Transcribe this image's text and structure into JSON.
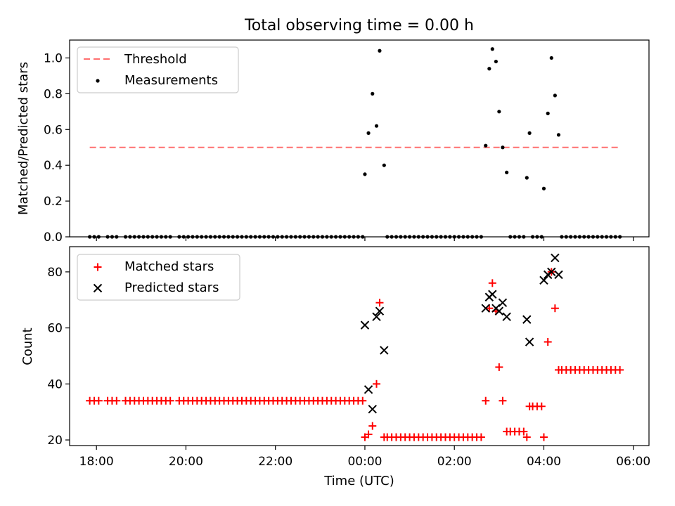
{
  "title": "Total observing time = 0.00 h",
  "colors": {
    "threshold": "#ff7070",
    "measurements": "#000000",
    "matched": "#ff0000",
    "predicted": "#000000"
  },
  "chart_data": [
    {
      "type": "scatter",
      "panel": "top",
      "xlabel": "",
      "ylabel": "Matched/Predicted stars",
      "xlim": [
        -6.6,
        6.35
      ],
      "ylim": [
        0,
        1.1
      ],
      "yticks": [
        0.0,
        0.2,
        0.4,
        0.6,
        0.8,
        1.0
      ],
      "ytick_labels": [
        "0.0",
        "0.2",
        "0.4",
        "0.6",
        "0.8",
        "1.0"
      ],
      "legend_position": "top-left",
      "legend": [
        "Threshold",
        "Measurements"
      ],
      "threshold": {
        "name": "Threshold",
        "value": 0.5,
        "x_range": [
          -6.15,
          5.7
        ]
      },
      "series": [
        {
          "name": "Measurements",
          "marker": "dot",
          "points": [
            [
              -6.15,
              0
            ],
            [
              -6.05,
              0
            ],
            [
              -5.95,
              0
            ],
            [
              -5.75,
              0
            ],
            [
              -5.65,
              0
            ],
            [
              -5.55,
              0
            ],
            [
              -5.35,
              0
            ],
            [
              -5.25,
              0
            ],
            [
              -5.15,
              0
            ],
            [
              -5.05,
              0
            ],
            [
              -4.95,
              0
            ],
            [
              -4.85,
              0
            ],
            [
              -4.75,
              0
            ],
            [
              -4.65,
              0
            ],
            [
              -4.55,
              0
            ],
            [
              -4.45,
              0
            ],
            [
              -4.35,
              0
            ],
            [
              -4.15,
              0
            ],
            [
              -4.05,
              0
            ],
            [
              -3.95,
              0
            ],
            [
              -3.85,
              0
            ],
            [
              -3.75,
              0
            ],
            [
              -3.65,
              0
            ],
            [
              -3.55,
              0
            ],
            [
              -3.45,
              0
            ],
            [
              -3.35,
              0
            ],
            [
              -3.25,
              0
            ],
            [
              -3.15,
              0
            ],
            [
              -3.05,
              0
            ],
            [
              -2.95,
              0
            ],
            [
              -2.85,
              0
            ],
            [
              -2.75,
              0
            ],
            [
              -2.65,
              0
            ],
            [
              -2.55,
              0
            ],
            [
              -2.45,
              0
            ],
            [
              -2.35,
              0
            ],
            [
              -2.25,
              0
            ],
            [
              -2.15,
              0
            ],
            [
              -2.05,
              0
            ],
            [
              -1.95,
              0
            ],
            [
              -1.85,
              0
            ],
            [
              -1.75,
              0
            ],
            [
              -1.65,
              0
            ],
            [
              -1.55,
              0
            ],
            [
              -1.45,
              0
            ],
            [
              -1.35,
              0
            ],
            [
              -1.25,
              0
            ],
            [
              -1.15,
              0
            ],
            [
              -1.05,
              0
            ],
            [
              -0.95,
              0
            ],
            [
              -0.85,
              0
            ],
            [
              -0.75,
              0
            ],
            [
              -0.65,
              0
            ],
            [
              -0.55,
              0
            ],
            [
              -0.45,
              0
            ],
            [
              -0.35,
              0
            ],
            [
              -0.25,
              0
            ],
            [
              -0.15,
              0
            ],
            [
              -0.05,
              0
            ],
            [
              0.0,
              0.35
            ],
            [
              0.08,
              0.58
            ],
            [
              0.17,
              0.8
            ],
            [
              0.26,
              0.62
            ],
            [
              0.33,
              1.04
            ],
            [
              0.43,
              0.4
            ],
            [
              0.5,
              0
            ],
            [
              0.6,
              0
            ],
            [
              0.7,
              0
            ],
            [
              0.8,
              0
            ],
            [
              0.9,
              0
            ],
            [
              1.0,
              0
            ],
            [
              1.1,
              0
            ],
            [
              1.2,
              0
            ],
            [
              1.3,
              0
            ],
            [
              1.4,
              0
            ],
            [
              1.5,
              0
            ],
            [
              1.6,
              0
            ],
            [
              1.7,
              0
            ],
            [
              1.8,
              0
            ],
            [
              1.9,
              0
            ],
            [
              2.0,
              0
            ],
            [
              2.1,
              0
            ],
            [
              2.2,
              0
            ],
            [
              2.3,
              0
            ],
            [
              2.4,
              0
            ],
            [
              2.5,
              0
            ],
            [
              2.6,
              0
            ],
            [
              2.7,
              0.51
            ],
            [
              2.78,
              0.94
            ],
            [
              2.85,
              1.05
            ],
            [
              2.93,
              0.98
            ],
            [
              3.0,
              0.7
            ],
            [
              3.08,
              0.5
            ],
            [
              3.17,
              0.36
            ],
            [
              3.25,
              0
            ],
            [
              3.35,
              0
            ],
            [
              3.45,
              0
            ],
            [
              3.55,
              0
            ],
            [
              3.62,
              0.33
            ],
            [
              3.68,
              0.58
            ],
            [
              3.75,
              0
            ],
            [
              3.85,
              0
            ],
            [
              3.95,
              0
            ],
            [
              4.0,
              0.27
            ],
            [
              4.09,
              0.69
            ],
            [
              4.17,
              1.0
            ],
            [
              4.25,
              0.79
            ],
            [
              4.33,
              0.57
            ],
            [
              4.4,
              0
            ],
            [
              4.5,
              0
            ],
            [
              4.6,
              0
            ],
            [
              4.7,
              0
            ],
            [
              4.8,
              0
            ],
            [
              4.9,
              0
            ],
            [
              5.0,
              0
            ],
            [
              5.1,
              0
            ],
            [
              5.2,
              0
            ],
            [
              5.3,
              0
            ],
            [
              5.4,
              0
            ],
            [
              5.5,
              0
            ],
            [
              5.6,
              0
            ],
            [
              5.7,
              0
            ]
          ]
        }
      ]
    },
    {
      "type": "scatter",
      "panel": "bottom",
      "xlabel": "Time (UTC)",
      "ylabel": "Count",
      "xlim": [
        -6.6,
        6.35
      ],
      "ylim": [
        18,
        89
      ],
      "yticks": [
        20,
        40,
        60,
        80
      ],
      "ytick_labels": [
        "20",
        "40",
        "60",
        "80"
      ],
      "xticks": [
        -6,
        -4,
        -2,
        0,
        2,
        4,
        6
      ],
      "xtick_labels": [
        "18:00",
        "20:00",
        "22:00",
        "00:00",
        "02:00",
        "04:00",
        "06:00"
      ],
      "legend_position": "top-left",
      "legend": [
        "Matched stars",
        "Predicted stars"
      ],
      "series": [
        {
          "name": "Matched stars",
          "marker": "plus",
          "points": [
            [
              -6.15,
              34
            ],
            [
              -6.05,
              34
            ],
            [
              -5.95,
              34
            ],
            [
              -5.75,
              34
            ],
            [
              -5.65,
              34
            ],
            [
              -5.55,
              34
            ],
            [
              -5.35,
              34
            ],
            [
              -5.25,
              34
            ],
            [
              -5.15,
              34
            ],
            [
              -5.05,
              34
            ],
            [
              -4.95,
              34
            ],
            [
              -4.85,
              34
            ],
            [
              -4.75,
              34
            ],
            [
              -4.65,
              34
            ],
            [
              -4.55,
              34
            ],
            [
              -4.45,
              34
            ],
            [
              -4.35,
              34
            ],
            [
              -4.15,
              34
            ],
            [
              -4.05,
              34
            ],
            [
              -3.95,
              34
            ],
            [
              -3.85,
              34
            ],
            [
              -3.75,
              34
            ],
            [
              -3.65,
              34
            ],
            [
              -3.55,
              34
            ],
            [
              -3.45,
              34
            ],
            [
              -3.35,
              34
            ],
            [
              -3.25,
              34
            ],
            [
              -3.15,
              34
            ],
            [
              -3.05,
              34
            ],
            [
              -2.95,
              34
            ],
            [
              -2.85,
              34
            ],
            [
              -2.75,
              34
            ],
            [
              -2.65,
              34
            ],
            [
              -2.55,
              34
            ],
            [
              -2.45,
              34
            ],
            [
              -2.35,
              34
            ],
            [
              -2.25,
              34
            ],
            [
              -2.15,
              34
            ],
            [
              -2.05,
              34
            ],
            [
              -1.95,
              34
            ],
            [
              -1.85,
              34
            ],
            [
              -1.75,
              34
            ],
            [
              -1.65,
              34
            ],
            [
              -1.55,
              34
            ],
            [
              -1.45,
              34
            ],
            [
              -1.35,
              34
            ],
            [
              -1.25,
              34
            ],
            [
              -1.15,
              34
            ],
            [
              -1.05,
              34
            ],
            [
              -0.95,
              34
            ],
            [
              -0.85,
              34
            ],
            [
              -0.75,
              34
            ],
            [
              -0.65,
              34
            ],
            [
              -0.55,
              34
            ],
            [
              -0.45,
              34
            ],
            [
              -0.35,
              34
            ],
            [
              -0.25,
              34
            ],
            [
              -0.15,
              34
            ],
            [
              -0.05,
              34
            ],
            [
              0.0,
              21
            ],
            [
              0.08,
              22
            ],
            [
              0.17,
              25
            ],
            [
              0.26,
              40
            ],
            [
              0.33,
              69
            ],
            [
              0.43,
              21
            ],
            [
              0.5,
              21
            ],
            [
              0.6,
              21
            ],
            [
              0.7,
              21
            ],
            [
              0.8,
              21
            ],
            [
              0.9,
              21
            ],
            [
              1.0,
              21
            ],
            [
              1.1,
              21
            ],
            [
              1.2,
              21
            ],
            [
              1.3,
              21
            ],
            [
              1.4,
              21
            ],
            [
              1.5,
              21
            ],
            [
              1.6,
              21
            ],
            [
              1.7,
              21
            ],
            [
              1.8,
              21
            ],
            [
              1.9,
              21
            ],
            [
              2.0,
              21
            ],
            [
              2.1,
              21
            ],
            [
              2.2,
              21
            ],
            [
              2.3,
              21
            ],
            [
              2.4,
              21
            ],
            [
              2.5,
              21
            ],
            [
              2.6,
              21
            ],
            [
              2.7,
              34
            ],
            [
              2.78,
              67
            ],
            [
              2.85,
              76
            ],
            [
              2.93,
              66
            ],
            [
              3.0,
              46
            ],
            [
              3.08,
              34
            ],
            [
              3.17,
              23
            ],
            [
              3.25,
              23
            ],
            [
              3.35,
              23
            ],
            [
              3.45,
              23
            ],
            [
              3.55,
              23
            ],
            [
              3.62,
              21
            ],
            [
              3.68,
              32
            ],
            [
              3.75,
              32
            ],
            [
              3.85,
              32
            ],
            [
              3.95,
              32
            ],
            [
              4.0,
              21
            ],
            [
              4.09,
              55
            ],
            [
              4.17,
              80
            ],
            [
              4.25,
              67
            ],
            [
              4.33,
              45
            ],
            [
              4.4,
              45
            ],
            [
              4.5,
              45
            ],
            [
              4.6,
              45
            ],
            [
              4.7,
              45
            ],
            [
              4.8,
              45
            ],
            [
              4.9,
              45
            ],
            [
              5.0,
              45
            ],
            [
              5.1,
              45
            ],
            [
              5.2,
              45
            ],
            [
              5.3,
              45
            ],
            [
              5.4,
              45
            ],
            [
              5.5,
              45
            ],
            [
              5.6,
              45
            ],
            [
              5.7,
              45
            ]
          ]
        },
        {
          "name": "Predicted stars",
          "marker": "x",
          "points": [
            [
              0.0,
              61
            ],
            [
              0.08,
              38
            ],
            [
              0.17,
              31
            ],
            [
              0.26,
              64
            ],
            [
              0.33,
              66
            ],
            [
              0.43,
              52
            ],
            [
              2.7,
              67
            ],
            [
              2.78,
              71
            ],
            [
              2.85,
              72
            ],
            [
              2.93,
              67
            ],
            [
              3.0,
              66
            ],
            [
              3.08,
              69
            ],
            [
              3.17,
              64
            ],
            [
              3.62,
              63
            ],
            [
              3.68,
              55
            ],
            [
              4.0,
              77
            ],
            [
              4.09,
              79
            ],
            [
              4.17,
              80
            ],
            [
              4.25,
              85
            ],
            [
              4.33,
              79
            ]
          ]
        }
      ]
    }
  ]
}
